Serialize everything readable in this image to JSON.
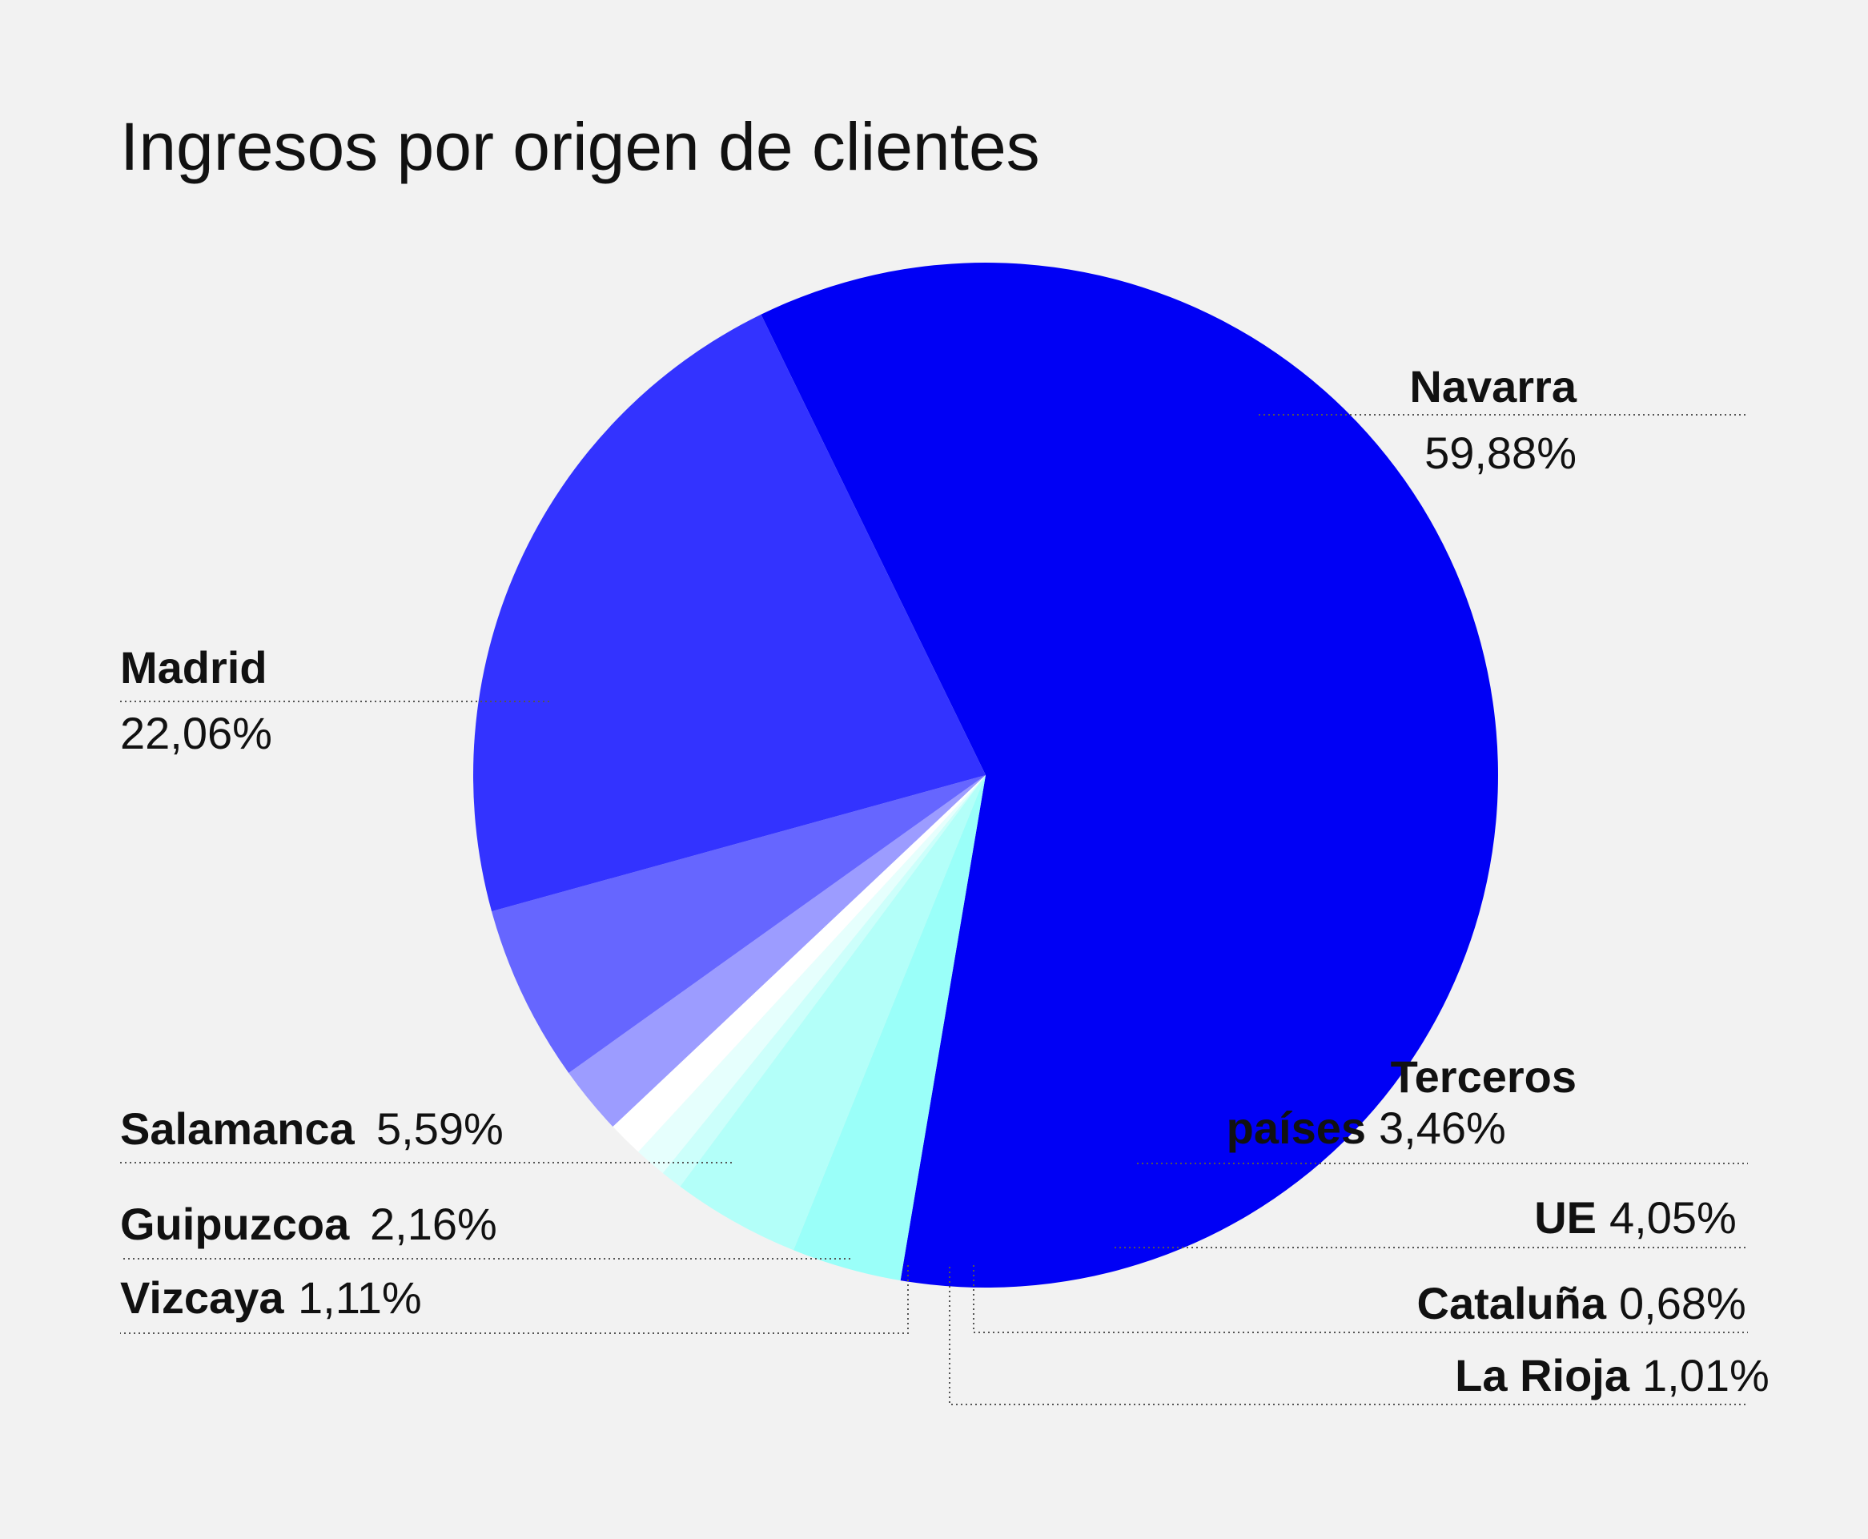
{
  "chart_data": {
    "type": "pie",
    "title": "Ingresos por origen de clientes",
    "unit": "%",
    "start_angle_deg": -26,
    "direction": "clockwise",
    "slices": [
      {
        "label": "Navarra",
        "value": 59.88,
        "value_label": "59,88%",
        "color": "#0000f5"
      },
      {
        "label": "Terceros países",
        "value": 3.46,
        "value_label": "3,46%",
        "color": "#9afff9"
      },
      {
        "label": "UE",
        "value": 4.05,
        "value_label": "4,05%",
        "color": "#b3fff9"
      },
      {
        "label": "Cataluña",
        "value": 0.68,
        "value_label": "0,68%",
        "color": "#ccfffb"
      },
      {
        "label": "La Rioja",
        "value": 1.01,
        "value_label": "1,01%",
        "color": "#e6fffd"
      },
      {
        "label": "Vizcaya",
        "value": 1.11,
        "value_label": "1,11%",
        "color": "#ffffff"
      },
      {
        "label": "Guipuzcoa",
        "value": 2.16,
        "value_label": "2,16%",
        "color": "#9c9cff"
      },
      {
        "label": "Salamanca",
        "value": 5.59,
        "value_label": "5,59%",
        "color": "#6666ff"
      },
      {
        "label": "Madrid",
        "value": 22.06,
        "value_label": "22,06%",
        "color": "#3333ff"
      }
    ]
  }
}
